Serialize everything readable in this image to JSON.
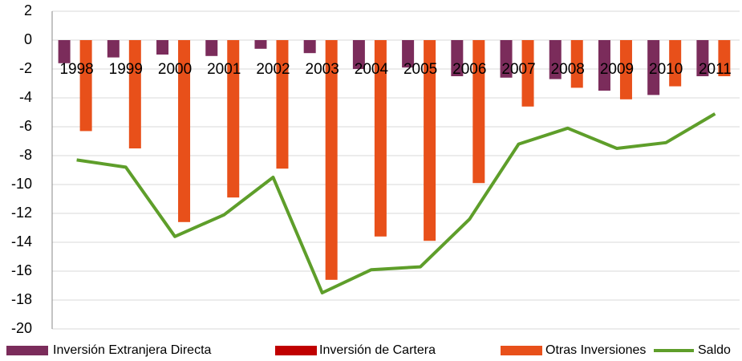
{
  "chart_data": {
    "type": "bar",
    "categories": [
      "1998",
      "1999",
      "2000",
      "2001",
      "2002",
      "2003",
      "2004",
      "2005",
      "2006",
      "2007",
      "2008",
      "2009",
      "2010",
      "2011"
    ],
    "series": [
      {
        "name": "Inversión Extranjera Directa",
        "color": "#7b2c5b",
        "values": [
          -1.6,
          -1.2,
          -1.0,
          -1.1,
          -0.6,
          -0.9,
          -2.0,
          -1.9,
          -2.5,
          -2.6,
          -2.7,
          -3.5,
          -3.8,
          -2.5
        ]
      },
      {
        "name": "Inversión de Cartera",
        "color": "#c00000",
        "values": [
          0,
          0,
          0,
          0,
          0,
          0,
          0,
          0,
          0,
          0,
          0,
          0,
          0,
          0
        ]
      },
      {
        "name": "Otras Inversiones",
        "color": "#e8501a",
        "values": [
          -6.3,
          -7.5,
          -12.6,
          -10.9,
          -8.9,
          -16.6,
          -13.6,
          -13.9,
          -9.9,
          -4.6,
          -3.3,
          -4.1,
          -3.2,
          -2.5
        ]
      },
      {
        "name": "Saldo",
        "color": "#5e9e2a",
        "type": "line",
        "values": [
          -8.3,
          -8.8,
          -13.6,
          -12.1,
          -9.5,
          -17.5,
          -15.9,
          -15.7,
          -12.4,
          -7.2,
          -6.1,
          -7.5,
          -7.1,
          -5.1
        ]
      }
    ],
    "ylim": [
      -20,
      2
    ],
    "yticks": [
      -20,
      -18,
      -16,
      -14,
      -12,
      -10,
      -8,
      -6,
      -4,
      -2,
      0,
      2
    ],
    "grid": true,
    "legend": "bottom"
  }
}
